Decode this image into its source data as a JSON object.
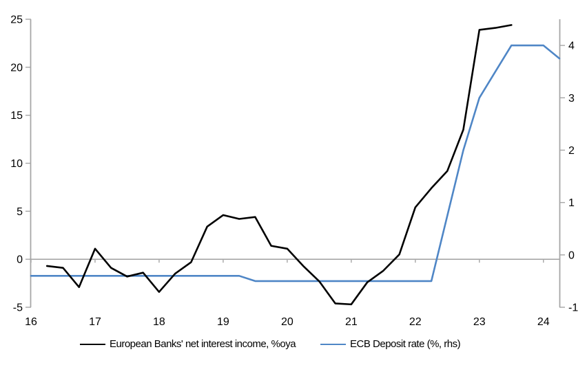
{
  "colors": {
    "axis_gray": "#a6a6a6",
    "black_line": "#000000",
    "blue_line": "#4f86c6",
    "text": "#000000",
    "background": "#ffffff"
  },
  "chart_data": {
    "type": "line",
    "title": "",
    "xlabel": "",
    "ylabel_left": "",
    "ylabel_right": "",
    "grid": "zero-line-only",
    "legend_position": "bottom",
    "x_axis": {
      "min": 16,
      "max": 24.25,
      "tick_positions": [
        16,
        17,
        18,
        19,
        20,
        21,
        22,
        23,
        24
      ],
      "tick_labels": [
        "16",
        "17",
        "18",
        "19",
        "20",
        "21",
        "22",
        "23",
        "24"
      ]
    },
    "y_left": {
      "min": -5,
      "max": 25,
      "ticks": [
        25,
        20,
        15,
        10,
        5,
        0,
        -5
      ],
      "tick_labels": [
        "25",
        "20",
        "15",
        "10",
        "5",
        "0",
        "-5"
      ]
    },
    "y_right": {
      "min": -1,
      "max": 4.5,
      "ticks": [
        4,
        3,
        2,
        1,
        0,
        -1
      ],
      "tick_labels": [
        "4",
        "3",
        "2",
        "1",
        "0",
        "-1"
      ]
    },
    "series": [
      {
        "name": "European Banks' net interest income, %oya",
        "axis": "left",
        "color": "#000000",
        "x": [
          16.25,
          16.5,
          16.75,
          17.0,
          17.25,
          17.5,
          17.75,
          18.0,
          18.25,
          18.5,
          18.75,
          19.0,
          19.25,
          19.5,
          19.75,
          20.0,
          20.25,
          20.5,
          20.75,
          21.0,
          21.25,
          21.5,
          21.75,
          22.0,
          22.25,
          22.5,
          22.75,
          23.0,
          23.25,
          23.5
        ],
        "values": [
          -0.7,
          -0.9,
          -2.9,
          1.1,
          -0.9,
          -1.8,
          -1.4,
          -3.4,
          -1.5,
          -0.3,
          3.4,
          4.6,
          4.2,
          4.4,
          1.4,
          1.1,
          -0.7,
          -2.3,
          -4.6,
          -4.7,
          -2.4,
          -1.2,
          0.5,
          5.4,
          7.4,
          9.2,
          13.5,
          23.9,
          24.1,
          24.4
        ]
      },
      {
        "name": "ECB Deposit rate (%, rhs)",
        "axis": "right",
        "color": "#4f86c6",
        "x": [
          16.0,
          16.25,
          16.5,
          16.75,
          17.0,
          17.25,
          17.5,
          17.75,
          18.0,
          18.25,
          18.5,
          18.75,
          19.0,
          19.25,
          19.5,
          19.75,
          20.0,
          20.25,
          20.5,
          20.75,
          21.0,
          21.25,
          21.5,
          21.75,
          22.0,
          22.25,
          22.5,
          22.75,
          23.0,
          23.25,
          23.5,
          23.75,
          24.0,
          24.25
        ],
        "values": [
          -0.4,
          -0.4,
          -0.4,
          -0.4,
          -0.4,
          -0.4,
          -0.4,
          -0.4,
          -0.4,
          -0.4,
          -0.4,
          -0.4,
          -0.4,
          -0.4,
          -0.5,
          -0.5,
          -0.5,
          -0.5,
          -0.5,
          -0.5,
          -0.5,
          -0.5,
          -0.5,
          -0.5,
          -0.5,
          -0.5,
          0.75,
          2.0,
          3.0,
          3.5,
          4.0,
          4.0,
          4.0,
          3.75
        ]
      }
    ]
  },
  "legend": {
    "items": [
      {
        "label": "European Banks' net interest income, %oya"
      },
      {
        "label": "ECB Deposit rate (%, rhs)"
      }
    ]
  }
}
